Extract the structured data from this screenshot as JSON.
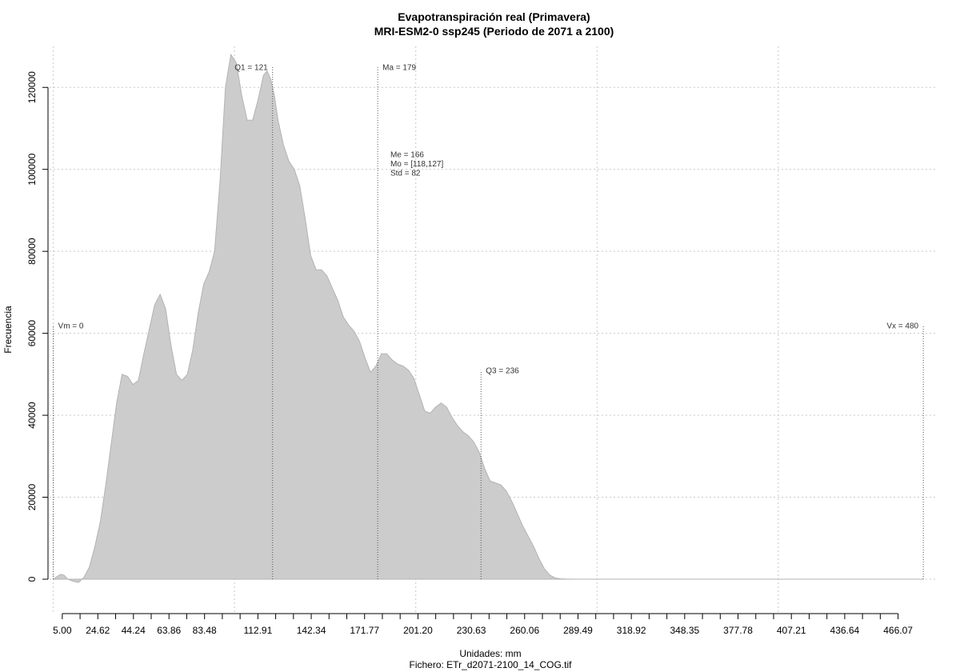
{
  "header": {
    "title": "Evapotranspiración real (Primavera)",
    "subtitle": "MRI-ESM2-0 ssp245 (Periodo de 2071 a 2100)"
  },
  "footer": {
    "xlabel": "Unidades: mm",
    "file": "Fichero: ETr_d2071-2100_14_COG.tif"
  },
  "chart_data": {
    "type": "area",
    "title": "Evapotranspiración real (Primavera)",
    "subtitle": "MRI-ESM2-0 ssp245 (Periodo de 2071 a 2100)",
    "xlabel": "Unidades: mm",
    "ylabel": "Frecuencia",
    "xlim": [
      -2,
      487
    ],
    "ylim": [
      -8000,
      130000
    ],
    "grid": true,
    "x_ticks": [
      "5.00",
      "24.62",
      "44.24",
      "63.86",
      "83.48",
      "112.91",
      "142.34",
      "171.77",
      "201.20",
      "230.63",
      "260.06",
      "289.49",
      "318.92",
      "348.35",
      "377.78",
      "407.21",
      "436.64",
      "466.07"
    ],
    "y_ticks": [
      0,
      20000,
      40000,
      60000,
      80000,
      100000,
      120000
    ],
    "density": {
      "x": [
        0,
        2,
        4,
        6,
        8,
        11,
        14,
        17,
        20,
        23,
        26,
        29,
        32,
        35,
        38,
        41,
        44,
        47,
        50,
        53,
        56,
        59,
        62,
        65,
        68,
        71,
        74,
        77,
        80,
        83,
        86,
        89,
        92,
        95,
        98,
        101,
        104,
        107,
        110,
        113,
        116,
        118,
        120,
        122,
        124,
        127,
        130,
        133,
        136,
        139,
        142,
        145,
        148,
        151,
        154,
        157,
        160,
        163,
        166,
        169,
        172,
        175,
        178,
        181,
        184,
        187,
        190,
        193,
        196,
        199,
        202,
        205,
        208,
        211,
        214,
        217,
        220,
        223,
        226,
        229,
        232,
        235,
        238,
        241,
        244,
        247,
        250,
        253,
        256,
        259,
        262,
        265,
        268,
        271,
        274,
        277,
        280,
        283,
        286,
        289,
        292,
        295,
        298,
        301,
        304,
        307,
        310,
        313,
        316,
        319,
        322,
        325,
        328,
        331,
        334,
        337,
        340,
        345,
        350,
        355,
        360,
        365,
        370,
        375,
        380,
        385,
        390,
        395,
        400,
        405,
        410,
        415,
        420,
        430,
        440,
        450,
        460,
        470,
        480
      ],
      "y": [
        0,
        600,
        1200,
        1000,
        0,
        -500,
        -800,
        500,
        3000,
        8000,
        14000,
        23000,
        33000,
        43000,
        50000,
        49500,
        47500,
        48500,
        55000,
        61000,
        67000,
        69500,
        66000,
        57000,
        50000,
        48500,
        50000,
        56000,
        65000,
        72000,
        75000,
        80000,
        97000,
        120000,
        128000,
        126000,
        118000,
        112000,
        112000,
        117000,
        123000,
        124000,
        122000,
        118000,
        112000,
        106000,
        102000,
        100000,
        96000,
        88000,
        79000,
        75500,
        75500,
        74000,
        71000,
        68000,
        64000,
        62000,
        60500,
        58000,
        54000,
        50500,
        52000,
        55000,
        55000,
        53500,
        52500,
        52000,
        51000,
        49000,
        45000,
        41000,
        40500,
        42000,
        43000,
        42000,
        39500,
        37500,
        36000,
        35000,
        33500,
        31000,
        27000,
        24000,
        23500,
        23000,
        21500,
        19000,
        16000,
        13000,
        10500,
        8000,
        5000,
        2500,
        1000,
        300,
        100,
        50,
        20,
        10,
        5,
        0,
        0,
        0,
        0,
        0,
        0,
        0,
        0,
        0,
        0,
        0,
        0,
        0,
        0,
        0,
        0,
        0,
        0,
        0,
        0,
        0,
        0,
        0,
        0,
        0,
        0,
        0,
        0,
        0,
        0,
        0,
        0,
        0,
        0,
        0,
        0,
        0,
        0
      ]
    },
    "markers": [
      {
        "name": "Vm",
        "x": 0,
        "label": "Vm = 0",
        "top": 62000,
        "label_side": "right"
      },
      {
        "name": "Q1",
        "x": 121,
        "label": "Q1 = 121",
        "top": 125000,
        "label_side": "left"
      },
      {
        "name": "Ma",
        "x": 179,
        "label": "Ma = 179",
        "top": 125000,
        "label_side": "right"
      },
      {
        "name": "Q3",
        "x": 236,
        "label": "Q3 = 236",
        "top": 51000,
        "label_side": "right"
      },
      {
        "name": "Vx",
        "x": 480,
        "label": "Vx = 480",
        "top": 62000,
        "label_side": "left"
      }
    ],
    "stats": [
      "Me = 166",
      "Mo = [118,127]",
      "Std = 82"
    ],
    "stats_position": {
      "x": 186,
      "y": 103000
    },
    "colors": {
      "fill": "#cccccc",
      "outline": "#b3b3b3",
      "grid": "#c8c8c8",
      "axis": "#000000",
      "marker": "#555555"
    }
  }
}
